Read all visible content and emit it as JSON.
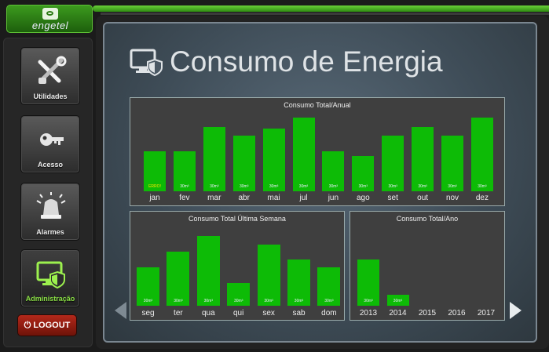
{
  "brand": {
    "name": "engetel"
  },
  "nav": {
    "items": [
      {
        "label": "Utilidades",
        "icon": "tools-icon"
      },
      {
        "label": "Acesso",
        "icon": "keys-icon"
      },
      {
        "label": "Alarmes",
        "icon": "alarm-light-icon"
      },
      {
        "label": "Administração",
        "icon": "monitor-shield-icon",
        "active": true
      }
    ],
    "logout_label": "LOGOUT"
  },
  "page": {
    "title": "Consumo de Energia"
  },
  "colors": {
    "bar": "#0dbb06",
    "accent": "#8be046",
    "warning_text": "#ffe600"
  },
  "chart_data": [
    {
      "type": "bar",
      "title": "Consumo Total/Anual",
      "categories": [
        "jan",
        "fev",
        "mar",
        "abr",
        "mai",
        "jul",
        "jun",
        "ago",
        "set",
        "out",
        "nov",
        "dez"
      ],
      "values": [
        50,
        50,
        80,
        70,
        78,
        92,
        50,
        44,
        70,
        80,
        70,
        92
      ],
      "value_labels": [
        "ERRO!",
        "30m³",
        "30m³",
        "30m³",
        "30m³",
        "30m³",
        "30m³",
        "30m³",
        "30m³",
        "30m³",
        "30m³",
        "30m³"
      ],
      "ylim": [
        0,
        100
      ]
    },
    {
      "type": "bar",
      "title": "Consumo Total Última Semana",
      "categories": [
        "seg",
        "ter",
        "qua",
        "qui",
        "sex",
        "sab",
        "dom"
      ],
      "values": [
        55,
        77,
        100,
        33,
        88,
        66,
        55
      ],
      "value_labels": [
        "30m³",
        "30m³",
        "30m³",
        "30m³",
        "30m³",
        "30m³",
        "30m³"
      ],
      "ylim": [
        0,
        100
      ]
    },
    {
      "type": "bar",
      "title": "Consumo Total/Ano",
      "categories": [
        "2013",
        "2014",
        "2015",
        "2016",
        "2017"
      ],
      "values": [
        66,
        16,
        0,
        0,
        0
      ],
      "value_labels": [
        "30m³",
        "30m³",
        "",
        "",
        ""
      ],
      "ylim": [
        0,
        100
      ]
    }
  ]
}
